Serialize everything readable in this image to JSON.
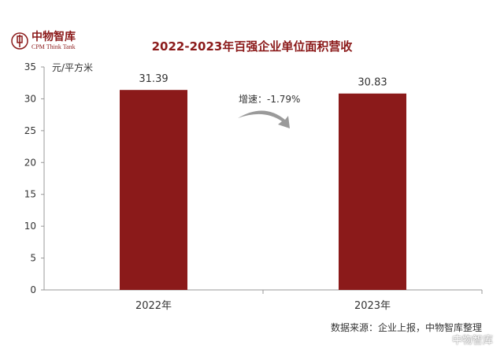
{
  "logo": {
    "name": "中物智库",
    "subtitle": "CPM Think Tank"
  },
  "watermark": "中物智库",
  "source_note": "数据来源：企业上报，中物智库整理",
  "colors": {
    "bar": "#8b1a1a",
    "title": "#8b1a1a",
    "axis": "#999999"
  },
  "chart_data": {
    "type": "bar",
    "title": "2022-2023年百强企业单位面积营收",
    "ylabel": "元/平方米",
    "xlabel": "",
    "categories": [
      "2022年",
      "2023年"
    ],
    "values": [
      31.39,
      30.83
    ],
    "value_labels": [
      "31.39",
      "30.83"
    ],
    "ylim": [
      0,
      35
    ],
    "yticks": [
      0,
      5,
      10,
      15,
      20,
      25,
      30,
      35
    ],
    "grid": false,
    "annotation": "增速：-1.79%"
  }
}
